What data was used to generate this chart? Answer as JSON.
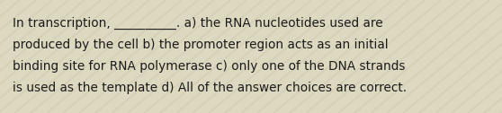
{
  "text_lines": [
    "In transcription, __________. a) the RNA nucleotides used are",
    "produced by the cell b) the promoter region acts as an initial",
    "binding site for RNA polymerase c) only one of the DNA strands",
    "is used as the template d) All of the answer choices are correct."
  ],
  "background_color": "#ddd8c0",
  "stripe_color": "#c8c2a8",
  "text_color": "#1a1a1a",
  "font_size": 9.8,
  "fig_width": 5.58,
  "fig_height": 1.26,
  "dpi": 100
}
